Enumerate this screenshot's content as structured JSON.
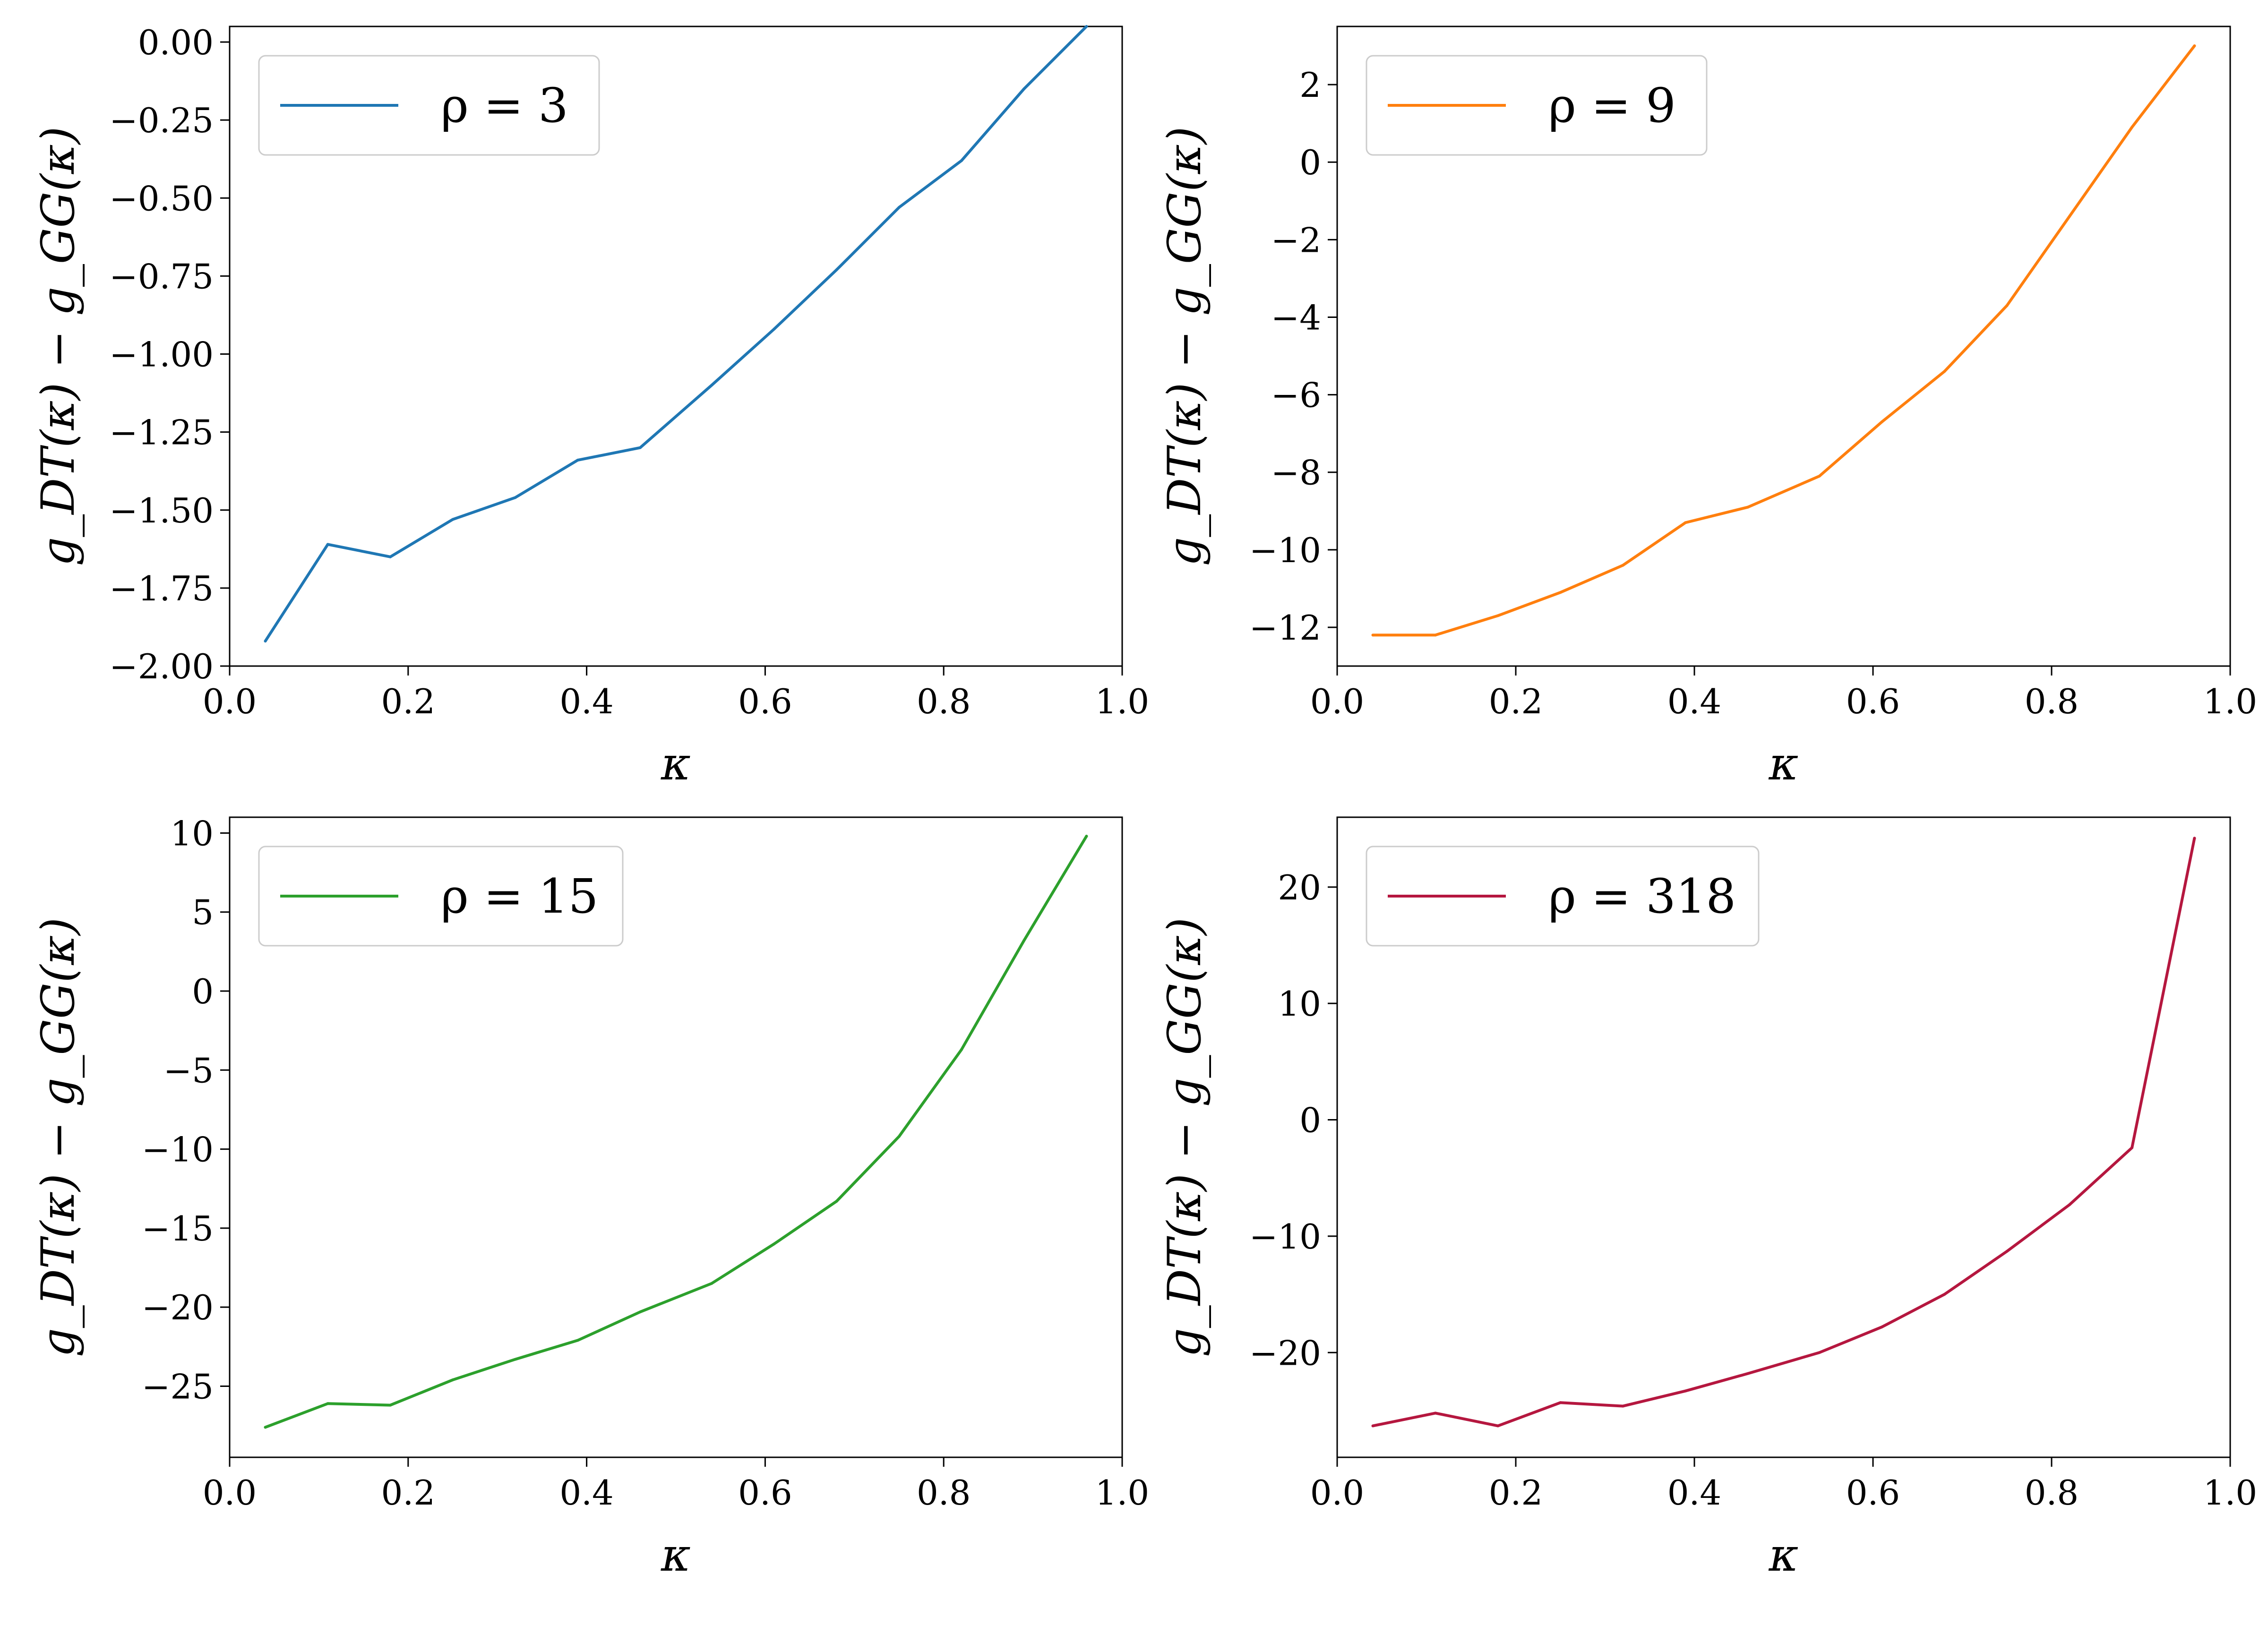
{
  "chart_data": [
    {
      "type": "line",
      "xlabel": "κ",
      "ylabel": "g_DT(κ) − g_GG(κ)",
      "xlim": [
        0.0,
        1.0
      ],
      "ylim": [
        -2.0,
        0.05
      ],
      "xticks": [
        "0.0",
        "0.2",
        "0.4",
        "0.6",
        "0.8",
        "1.0"
      ],
      "yticks": [
        {
          "value": 0.0,
          "label": "0.00"
        },
        {
          "value": -0.25,
          "label": "−0.25"
        },
        {
          "value": -0.5,
          "label": "−0.50"
        },
        {
          "value": -0.75,
          "label": "−0.75"
        },
        {
          "value": -1.0,
          "label": "−1.00"
        },
        {
          "value": -1.25,
          "label": "−1.25"
        },
        {
          "value": -1.5,
          "label": "−1.50"
        },
        {
          "value": -1.75,
          "label": "−1.75"
        },
        {
          "value": -2.0,
          "label": "−2.00"
        }
      ],
      "legend": "top-left",
      "series": [
        {
          "name": "ρ = 3",
          "color": "#1f77b4",
          "x": [
            0.04,
            0.11,
            0.18,
            0.25,
            0.32,
            0.39,
            0.46,
            0.54,
            0.61,
            0.68,
            0.75,
            0.82,
            0.89,
            0.96
          ],
          "y": [
            -1.92,
            -1.61,
            -1.65,
            -1.53,
            -1.46,
            -1.34,
            -1.3,
            -1.1,
            -0.92,
            -0.73,
            -0.53,
            -0.38,
            -0.15,
            0.05
          ]
        }
      ]
    },
    {
      "type": "line",
      "xlabel": "κ",
      "ylabel": "g_DT(κ) − g_GG(κ)",
      "xlim": [
        0.0,
        1.0
      ],
      "ylim": [
        -13.0,
        3.5
      ],
      "xticks": [
        "0.0",
        "0.2",
        "0.4",
        "0.6",
        "0.8",
        "1.0"
      ],
      "yticks": [
        {
          "value": 2,
          "label": "2"
        },
        {
          "value": 0,
          "label": "0"
        },
        {
          "value": -2,
          "label": "−2"
        },
        {
          "value": -4,
          "label": "−4"
        },
        {
          "value": -6,
          "label": "−6"
        },
        {
          "value": -8,
          "label": "−8"
        },
        {
          "value": -10,
          "label": "−10"
        },
        {
          "value": -12,
          "label": "−12"
        }
      ],
      "legend": "top-left",
      "series": [
        {
          "name": "ρ = 9",
          "color": "#ff7f0e",
          "x": [
            0.04,
            0.11,
            0.18,
            0.25,
            0.32,
            0.39,
            0.46,
            0.54,
            0.61,
            0.68,
            0.75,
            0.82,
            0.89,
            0.96
          ],
          "y": [
            -12.2,
            -12.2,
            -11.7,
            -11.1,
            -10.4,
            -9.3,
            -8.9,
            -8.1,
            -6.7,
            -5.4,
            -3.7,
            -1.4,
            0.9,
            3.0
          ]
        }
      ]
    },
    {
      "type": "line",
      "xlabel": "κ",
      "ylabel": "g_DT(κ) − g_GG(κ)",
      "xlim": [
        0.0,
        1.0
      ],
      "ylim": [
        -29.5,
        11.0
      ],
      "xticks": [
        "0.0",
        "0.2",
        "0.4",
        "0.6",
        "0.8",
        "1.0"
      ],
      "yticks": [
        {
          "value": 10,
          "label": "10"
        },
        {
          "value": 5,
          "label": "5"
        },
        {
          "value": 0,
          "label": "0"
        },
        {
          "value": -5,
          "label": "−5"
        },
        {
          "value": -10,
          "label": "−10"
        },
        {
          "value": -15,
          "label": "−15"
        },
        {
          "value": -20,
          "label": "−20"
        },
        {
          "value": -25,
          "label": "−25"
        }
      ],
      "legend": "top-left",
      "series": [
        {
          "name": "ρ = 15",
          "color": "#2ca02c",
          "x": [
            0.04,
            0.11,
            0.18,
            0.25,
            0.32,
            0.39,
            0.46,
            0.54,
            0.61,
            0.68,
            0.75,
            0.82,
            0.89,
            0.96
          ],
          "y": [
            -27.6,
            -26.1,
            -26.2,
            -24.6,
            -23.3,
            -22.1,
            -20.3,
            -18.5,
            -16.0,
            -13.3,
            -9.2,
            -3.7,
            3.2,
            9.8
          ]
        }
      ]
    },
    {
      "type": "line",
      "xlabel": "κ",
      "ylabel": "g_DT(κ) − g_GG(κ)",
      "xlim": [
        0.0,
        1.0
      ],
      "ylim": [
        -29.0,
        26.0
      ],
      "xticks": [
        "0.0",
        "0.2",
        "0.4",
        "0.6",
        "0.8",
        "1.0"
      ],
      "yticks": [
        {
          "value": 20,
          "label": "20"
        },
        {
          "value": 10,
          "label": "10"
        },
        {
          "value": 0,
          "label": "0"
        },
        {
          "value": -10,
          "label": "−10"
        },
        {
          "value": -20,
          "label": "−20"
        }
      ],
      "legend": "top-left",
      "series": [
        {
          "name": "ρ = 318",
          "color": "#b5173f",
          "x": [
            0.04,
            0.11,
            0.18,
            0.25,
            0.32,
            0.39,
            0.46,
            0.54,
            0.61,
            0.68,
            0.75,
            0.82,
            0.89,
            0.96
          ],
          "y": [
            -26.3,
            -25.2,
            -26.3,
            -24.3,
            -24.6,
            -23.3,
            -21.8,
            -20.0,
            -17.8,
            -15.0,
            -11.3,
            -7.3,
            -2.4,
            24.2
          ]
        }
      ]
    }
  ]
}
